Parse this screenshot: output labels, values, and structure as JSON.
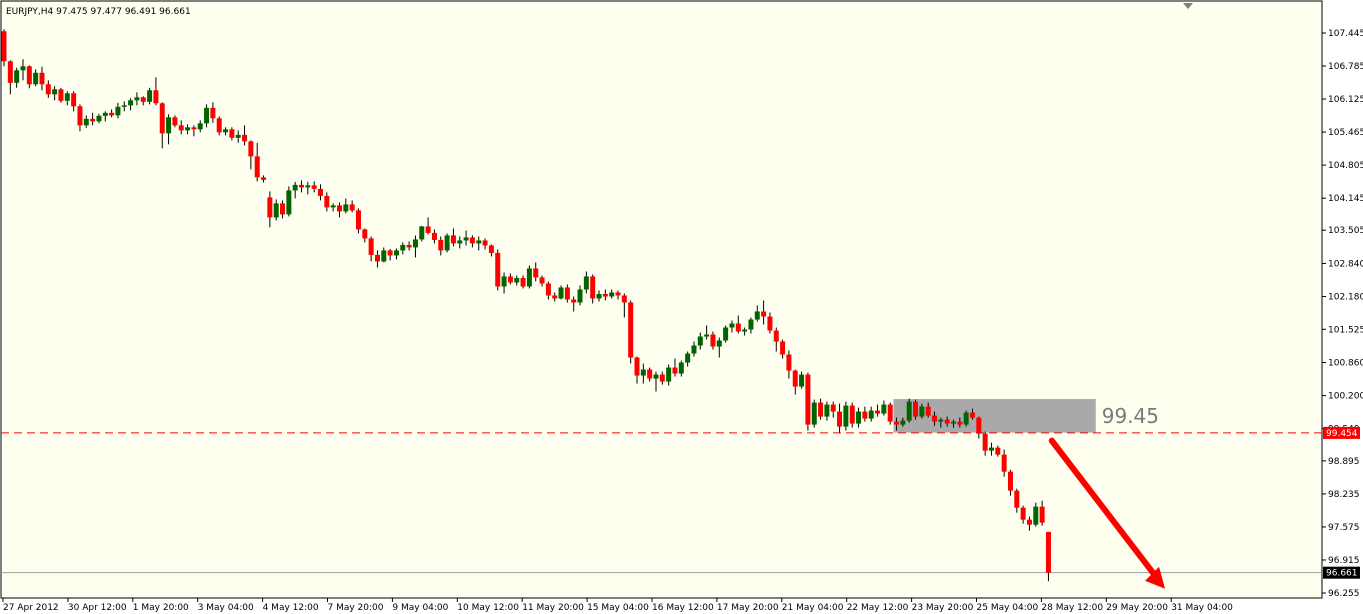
{
  "header": {
    "symbol": "EURJPY,H4",
    "ohlc": "97.475 97.477 96.491 96.661"
  },
  "colors": {
    "background": "#fffff0",
    "bull": "#006400",
    "bear": "#ff0000",
    "wick": "#000000",
    "level_line": "#ff0000",
    "zone": "#a9a9a9",
    "arrow": "#ff0000"
  },
  "chart_data": {
    "type": "candlestick",
    "title": "",
    "x_ticks": [
      "27 Apr 2012",
      "30 Apr 12:00",
      "1 May 20:00",
      "3 May 04:00",
      "4 May 12:00",
      "7 May 20:00",
      "9 May 04:00",
      "10 May 12:00",
      "11 May 20:00",
      "15 May 04:00",
      "16 May 12:00",
      "17 May 20:00",
      "21 May 04:00",
      "22 May 12:00",
      "23 May 20:00",
      "25 May 04:00",
      "28 May 12:00",
      "29 May 20:00",
      "31 May 04:00"
    ],
    "y_ticks": [
      "107.445",
      "106.785",
      "106.125",
      "105.465",
      "104.805",
      "104.145",
      "103.505",
      "102.840",
      "102.180",
      "101.525",
      "100.860",
      "100.200",
      "99.540",
      "98.895",
      "98.235",
      "97.575",
      "96.915",
      "96.255"
    ],
    "ylim": [
      96.255,
      107.445
    ],
    "grid": false,
    "level_line": {
      "value": 99.454,
      "label": "99.454"
    },
    "current_price": {
      "value": 96.661,
      "label": "96.661"
    },
    "zone": {
      "low": 99.46,
      "high": 100.13,
      "label": "99.45",
      "from_candle": 141,
      "to_candle": 172
    },
    "arrow": {
      "from_candle": 169,
      "from_price": 99.22,
      "to_candle": 185,
      "to_price": 96.3
    },
    "ohlc": [
      [
        107.48,
        107.52,
        106.78,
        106.88
      ],
      [
        106.88,
        106.9,
        106.22,
        106.45
      ],
      [
        106.45,
        106.75,
        106.35,
        106.7
      ],
      [
        106.7,
        106.92,
        106.5,
        106.78
      ],
      [
        106.78,
        106.8,
        106.34,
        106.42
      ],
      [
        106.42,
        106.72,
        106.38,
        106.65
      ],
      [
        106.65,
        106.77,
        106.3,
        106.42
      ],
      [
        106.42,
        106.5,
        106.15,
        106.22
      ],
      [
        106.22,
        106.38,
        106.1,
        106.32
      ],
      [
        106.32,
        106.35,
        106.05,
        106.09
      ],
      [
        106.09,
        106.28,
        106.0,
        106.24
      ],
      [
        106.24,
        106.28,
        105.88,
        105.98
      ],
      [
        105.98,
        106.02,
        105.48,
        105.6
      ],
      [
        105.6,
        105.8,
        105.55,
        105.73
      ],
      [
        105.73,
        105.85,
        105.6,
        105.68
      ],
      [
        105.68,
        105.83,
        105.64,
        105.79
      ],
      [
        105.79,
        105.88,
        105.68,
        105.85
      ],
      [
        105.85,
        105.92,
        105.76,
        105.8
      ],
      [
        105.8,
        106.05,
        105.74,
        105.97
      ],
      [
        105.97,
        106.08,
        105.88,
        106.0
      ],
      [
        106.0,
        106.14,
        105.9,
        106.1
      ],
      [
        106.1,
        106.26,
        106.0,
        106.16
      ],
      [
        106.16,
        106.18,
        106.0,
        106.07
      ],
      [
        106.07,
        106.35,
        106.02,
        106.3
      ],
      [
        106.3,
        106.56,
        106.0,
        106.04
      ],
      [
        106.04,
        106.06,
        105.14,
        105.44
      ],
      [
        105.44,
        105.82,
        105.22,
        105.76
      ],
      [
        105.76,
        105.8,
        105.56,
        105.6
      ],
      [
        105.6,
        105.7,
        105.42,
        105.5
      ],
      [
        105.5,
        105.62,
        105.42,
        105.56
      ],
      [
        105.56,
        105.6,
        105.38,
        105.52
      ],
      [
        105.52,
        105.7,
        105.46,
        105.64
      ],
      [
        105.64,
        106.02,
        105.56,
        105.95
      ],
      [
        105.95,
        106.06,
        105.65,
        105.74
      ],
      [
        105.74,
        105.78,
        105.4,
        105.46
      ],
      [
        105.46,
        105.56,
        105.4,
        105.52
      ],
      [
        105.52,
        105.56,
        105.3,
        105.35
      ],
      [
        105.35,
        105.5,
        105.25,
        105.41
      ],
      [
        105.41,
        105.6,
        105.2,
        105.28
      ],
      [
        105.28,
        105.3,
        104.72,
        104.98
      ],
      [
        104.98,
        105.25,
        104.48,
        104.56
      ],
      [
        104.56,
        104.6,
        104.46,
        104.51
      ],
      [
        104.16,
        104.28,
        103.56,
        103.76
      ],
      [
        103.76,
        104.12,
        103.7,
        104.04
      ],
      [
        104.04,
        104.1,
        103.74,
        103.82
      ],
      [
        103.82,
        104.38,
        103.78,
        104.3
      ],
      [
        104.3,
        104.47,
        104.14,
        104.41
      ],
      [
        104.41,
        104.5,
        104.26,
        104.36
      ],
      [
        104.36,
        104.47,
        104.22,
        104.4
      ],
      [
        104.4,
        104.48,
        104.26,
        104.33
      ],
      [
        104.33,
        104.42,
        104.1,
        104.19
      ],
      [
        104.19,
        104.26,
        103.88,
        103.96
      ],
      [
        103.96,
        104.04,
        103.88,
        104.0
      ],
      [
        104.0,
        104.06,
        103.76,
        103.88
      ],
      [
        103.88,
        104.14,
        103.84,
        104.02
      ],
      [
        104.02,
        104.1,
        103.86,
        103.9
      ],
      [
        103.9,
        103.94,
        103.44,
        103.52
      ],
      [
        103.52,
        103.54,
        103.26,
        103.34
      ],
      [
        103.34,
        103.38,
        102.88,
        103.01
      ],
      [
        103.01,
        103.1,
        102.76,
        102.88
      ],
      [
        102.88,
        103.16,
        102.86,
        103.1
      ],
      [
        103.1,
        103.13,
        102.9,
        103.0
      ],
      [
        103.0,
        103.14,
        102.92,
        103.1
      ],
      [
        103.1,
        103.26,
        103.02,
        103.21
      ],
      [
        103.21,
        103.28,
        103.1,
        103.16
      ],
      [
        103.16,
        103.4,
        102.96,
        103.32
      ],
      [
        103.32,
        103.59,
        103.28,
        103.58
      ],
      [
        103.58,
        103.76,
        103.42,
        103.45
      ],
      [
        103.45,
        103.52,
        103.24,
        103.31
      ],
      [
        103.31,
        103.38,
        103.0,
        103.1
      ],
      [
        103.1,
        103.44,
        103.06,
        103.4
      ],
      [
        103.4,
        103.54,
        103.18,
        103.24
      ],
      [
        103.24,
        103.38,
        103.14,
        103.3
      ],
      [
        103.3,
        103.5,
        103.2,
        103.36
      ],
      [
        103.36,
        103.4,
        103.16,
        103.24
      ],
      [
        103.24,
        103.38,
        103.1,
        103.3
      ],
      [
        103.3,
        103.34,
        103.12,
        103.2
      ],
      [
        103.2,
        103.22,
        102.98,
        103.05
      ],
      [
        103.05,
        103.12,
        102.3,
        102.38
      ],
      [
        102.38,
        102.66,
        102.24,
        102.58
      ],
      [
        102.58,
        102.64,
        102.42,
        102.46
      ],
      [
        102.46,
        102.6,
        102.4,
        102.55
      ],
      [
        102.55,
        102.6,
        102.34,
        102.38
      ],
      [
        102.38,
        102.8,
        102.34,
        102.74
      ],
      [
        102.74,
        102.86,
        102.48,
        102.56
      ],
      [
        102.56,
        102.6,
        102.38,
        102.44
      ],
      [
        102.44,
        102.48,
        102.12,
        102.2
      ],
      [
        102.2,
        102.26,
        102.08,
        102.14
      ],
      [
        102.14,
        102.4,
        102.12,
        102.36
      ],
      [
        102.36,
        102.42,
        102.06,
        102.12
      ],
      [
        102.12,
        102.18,
        101.88,
        102.06
      ],
      [
        102.06,
        102.4,
        102.0,
        102.32
      ],
      [
        102.32,
        102.68,
        102.24,
        102.58
      ],
      [
        102.58,
        102.62,
        102.04,
        102.14
      ],
      [
        102.14,
        102.3,
        102.08,
        102.23
      ],
      [
        102.23,
        102.32,
        102.1,
        102.18
      ],
      [
        102.18,
        102.32,
        102.14,
        102.26
      ],
      [
        102.26,
        102.3,
        102.12,
        102.2
      ],
      [
        102.2,
        102.24,
        101.76,
        102.06
      ],
      [
        102.06,
        102.1,
        100.84,
        100.96
      ],
      [
        100.96,
        100.98,
        100.44,
        100.6
      ],
      [
        100.6,
        100.84,
        100.44,
        100.72
      ],
      [
        100.72,
        100.76,
        100.48,
        100.54
      ],
      [
        100.54,
        100.68,
        100.28,
        100.62
      ],
      [
        100.62,
        100.68,
        100.42,
        100.48
      ],
      [
        100.48,
        100.82,
        100.4,
        100.76
      ],
      [
        100.76,
        100.94,
        100.58,
        100.64
      ],
      [
        100.64,
        100.9,
        100.58,
        100.86
      ],
      [
        100.86,
        101.08,
        100.78,
        101.04
      ],
      [
        101.04,
        101.28,
        100.98,
        101.2
      ],
      [
        101.2,
        101.46,
        101.12,
        101.38
      ],
      [
        101.38,
        101.6,
        101.32,
        101.42
      ],
      [
        101.42,
        101.48,
        101.12,
        101.18
      ],
      [
        101.18,
        101.36,
        100.96,
        101.3
      ],
      [
        101.3,
        101.6,
        101.26,
        101.56
      ],
      [
        101.56,
        101.7,
        101.46,
        101.64
      ],
      [
        101.64,
        101.8,
        101.44,
        101.48
      ],
      [
        101.48,
        101.56,
        101.4,
        101.52
      ],
      [
        101.52,
        101.76,
        101.44,
        101.72
      ],
      [
        101.72,
        102.0,
        101.68,
        101.88
      ],
      [
        101.88,
        102.1,
        101.62,
        101.78
      ],
      [
        101.78,
        101.86,
        101.44,
        101.5
      ],
      [
        101.5,
        101.56,
        101.08,
        101.28
      ],
      [
        101.28,
        101.32,
        100.94,
        101.02
      ],
      [
        101.02,
        101.1,
        100.54,
        100.7
      ],
      [
        100.7,
        100.72,
        100.22,
        100.38
      ],
      [
        100.38,
        100.68,
        100.34,
        100.62
      ],
      [
        100.62,
        100.66,
        99.5,
        99.62
      ],
      [
        99.62,
        100.12,
        99.56,
        100.06
      ],
      [
        100.06,
        100.14,
        99.72,
        99.78
      ],
      [
        99.78,
        100.08,
        99.7,
        100.02
      ],
      [
        100.02,
        100.08,
        99.76,
        99.88
      ],
      [
        99.88,
        100.04,
        99.46,
        99.58
      ],
      [
        99.58,
        100.08,
        99.5,
        100.0
      ],
      [
        100.0,
        100.06,
        99.56,
        99.64
      ],
      [
        99.64,
        99.96,
        99.56,
        99.88
      ],
      [
        99.88,
        99.98,
        99.68,
        99.74
      ],
      [
        99.74,
        99.98,
        99.68,
        99.9
      ],
      [
        99.9,
        100.02,
        99.78,
        99.84
      ],
      [
        99.84,
        100.1,
        99.8,
        100.02
      ],
      [
        100.02,
        100.06,
        99.62,
        99.68
      ],
      [
        99.68,
        99.76,
        99.5,
        99.62
      ],
      [
        99.62,
        99.76,
        99.58,
        99.7
      ],
      [
        99.7,
        100.14,
        99.66,
        100.08
      ],
      [
        100.08,
        100.12,
        99.72,
        99.78
      ],
      [
        99.78,
        100.04,
        99.74,
        99.98
      ],
      [
        99.98,
        100.06,
        99.76,
        99.8
      ],
      [
        99.8,
        99.88,
        99.6,
        99.68
      ],
      [
        99.68,
        99.76,
        99.56,
        99.72
      ],
      [
        99.72,
        99.78,
        99.58,
        99.64
      ],
      [
        99.64,
        99.72,
        99.56,
        99.68
      ],
      [
        99.68,
        99.76,
        99.56,
        99.62
      ],
      [
        99.62,
        99.9,
        99.58,
        99.86
      ],
      [
        99.86,
        99.94,
        99.72,
        99.76
      ],
      [
        99.76,
        99.78,
        99.34,
        99.44
      ],
      [
        99.44,
        99.48,
        99.0,
        99.1
      ],
      [
        99.1,
        99.26,
        99.0,
        99.16
      ],
      [
        99.16,
        99.2,
        98.98,
        99.02
      ],
      [
        99.02,
        99.12,
        98.58,
        98.68
      ],
      [
        98.68,
        98.72,
        98.2,
        98.3
      ],
      [
        98.3,
        98.34,
        97.86,
        97.96
      ],
      [
        97.96,
        98.0,
        97.64,
        97.72
      ],
      [
        97.72,
        97.78,
        97.5,
        97.62
      ],
      [
        97.62,
        98.06,
        97.58,
        97.98
      ],
      [
        97.98,
        98.1,
        97.6,
        97.66
      ],
      [
        97.475,
        97.477,
        96.491,
        96.661
      ]
    ],
    "dates_first_index": {
      "27 Apr 2012": 0
    }
  }
}
